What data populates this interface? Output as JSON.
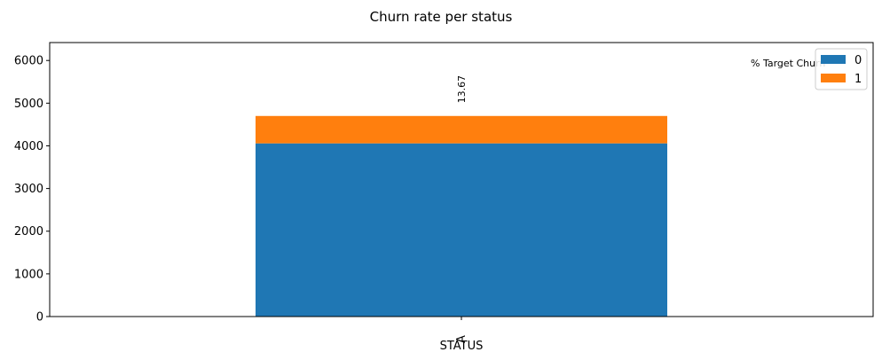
{
  "chart_data": {
    "type": "bar",
    "stacked": true,
    "title": "Churn rate per status",
    "xlabel": "STATUS",
    "ylabel": "",
    "categories": [
      "A"
    ],
    "series": [
      {
        "name": "0",
        "values": [
          4058
        ],
        "color": "#1f77b4"
      },
      {
        "name": "1",
        "values": [
          642
        ],
        "color": "#ff7f0e"
      }
    ],
    "ylim": [
      0,
      6420
    ],
    "yticks": [
      0,
      1000,
      2000,
      3000,
      4000,
      5000,
      6000
    ],
    "annotations": [
      {
        "category": "A",
        "text": "13.67",
        "y": 5000,
        "rotation": 90
      }
    ],
    "side_text": "% Target Churn",
    "legend_position": "top-right",
    "grid": false
  }
}
